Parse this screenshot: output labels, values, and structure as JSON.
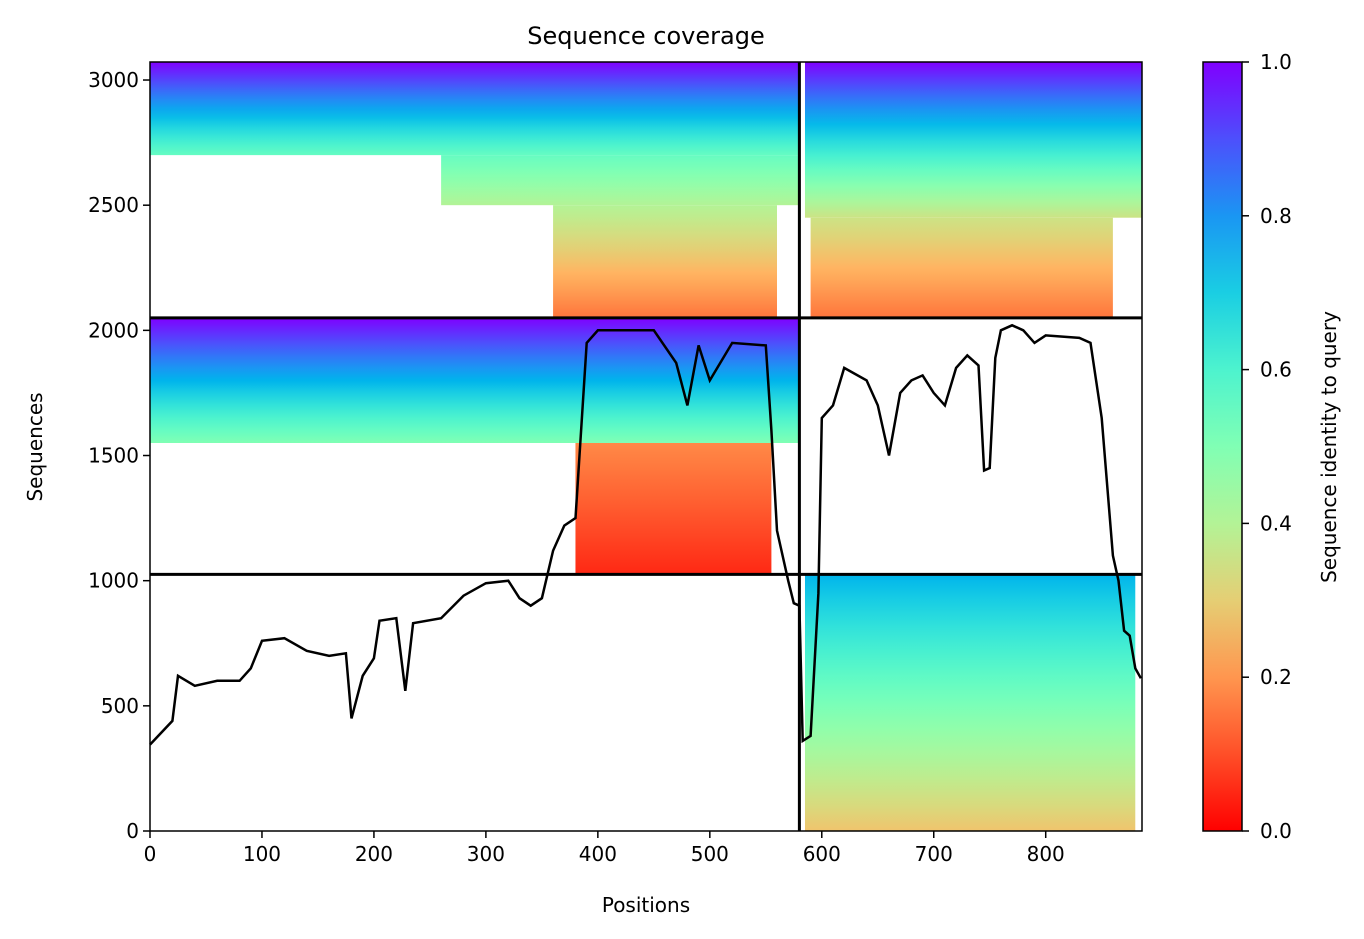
{
  "chart_data": {
    "type": "coverage",
    "title": "Sequence coverage",
    "xlabel": "Positions",
    "ylabel": "Sequences",
    "colorbar_label": "Sequence identity to query",
    "xlim": [
      0,
      886
    ],
    "ylim": [
      0,
      3072
    ],
    "xticks": [
      0,
      100,
      200,
      300,
      400,
      500,
      600,
      700,
      800
    ],
    "yticks": [
      0,
      500,
      1000,
      1500,
      2000,
      2500,
      3000
    ],
    "clim": [
      0,
      1
    ],
    "cticks": [
      {
        "value": 0,
        "label": "0.0"
      },
      {
        "value": 0.2,
        "label": "0.2"
      },
      {
        "value": 0.4,
        "label": "0.4"
      },
      {
        "value": 0.6,
        "label": "0.6"
      },
      {
        "value": 0.8,
        "label": "0.8"
      },
      {
        "value": 1,
        "label": "1.0"
      }
    ],
    "colormap": "rainbow",
    "line_color": "#000000",
    "chain_breaks_x": [
      580
    ],
    "chain_breaks_y": [
      1025,
      2050
    ],
    "blocks": [
      {
        "x": [
          0,
          580
        ],
        "y": [
          2700,
          3072
        ],
        "identity": [
          0.55,
          1.0
        ]
      },
      {
        "x": [
          260,
          580
        ],
        "y": [
          2500,
          2700
        ],
        "identity": [
          0.4,
          0.55
        ]
      },
      {
        "x": [
          360,
          560
        ],
        "y": [
          2050,
          2500
        ],
        "identity": [
          0.15,
          0.4
        ]
      },
      {
        "x": [
          585,
          886
        ],
        "y": [
          2450,
          3072
        ],
        "identity": [
          0.35,
          1.0
        ]
      },
      {
        "x": [
          590,
          860
        ],
        "y": [
          2050,
          2450
        ],
        "identity": [
          0.15,
          0.35
        ]
      },
      {
        "x": [
          0,
          580
        ],
        "y": [
          1550,
          2050
        ],
        "identity": [
          0.5,
          1.0
        ]
      },
      {
        "x": [
          380,
          555
        ],
        "y": [
          1025,
          1550
        ],
        "identity": [
          0.05,
          0.18
        ]
      },
      {
        "x": [
          585,
          880
        ],
        "y": [
          0,
          1025
        ],
        "identity": [
          0.28,
          0.75
        ]
      }
    ],
    "x": [
      0,
      20,
      25,
      40,
      60,
      80,
      90,
      100,
      120,
      140,
      160,
      175,
      180,
      190,
      200,
      205,
      220,
      228,
      235,
      260,
      280,
      300,
      320,
      330,
      340,
      350,
      360,
      370,
      380,
      390,
      400,
      450,
      470,
      480,
      490,
      500,
      520,
      550,
      555,
      560,
      570,
      575,
      580,
      583,
      590,
      597,
      600,
      610,
      620,
      640,
      650,
      660,
      670,
      680,
      690,
      700,
      710,
      720,
      730,
      740,
      745,
      750,
      755,
      760,
      770,
      780,
      790,
      800,
      830,
      840,
      850,
      860,
      865,
      870,
      875,
      880,
      885
    ],
    "values": [
      345,
      440,
      620,
      580,
      600,
      600,
      650,
      760,
      770,
      720,
      700,
      710,
      450,
      620,
      690,
      840,
      850,
      560,
      830,
      850,
      940,
      990,
      1000,
      930,
      900,
      930,
      1120,
      1220,
      1250,
      1950,
      2000,
      2000,
      1870,
      1700,
      1940,
      1800,
      1950,
      1940,
      1600,
      1200,
      1000,
      910,
      900,
      360,
      380,
      950,
      1650,
      1700,
      1850,
      1800,
      1700,
      1500,
      1750,
      1800,
      1820,
      1750,
      1700,
      1850,
      1900,
      1860,
      1440,
      1450,
      1890,
      2000,
      2020,
      2000,
      1950,
      1980,
      1970,
      1950,
      1650,
      1100,
      1000,
      800,
      780,
      650,
      610
    ]
  }
}
